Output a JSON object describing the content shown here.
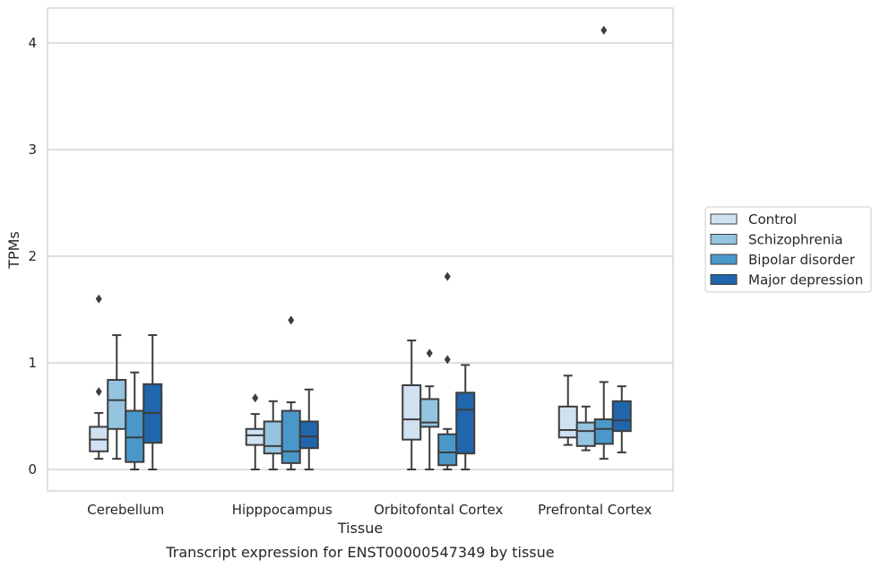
{
  "caption": "Transcript expression for ENST00000547349 by tissue",
  "chart_data": {
    "type": "box",
    "title": "",
    "xlabel": "Tissue",
    "ylabel": "TPMs",
    "ylim": [
      -0.2,
      4.33
    ],
    "yticks": [
      0,
      1,
      2,
      3,
      4
    ],
    "grid": "horizontal",
    "legend_position": "right",
    "categories": [
      "Cerebellum",
      "Hipppocampus",
      "Orbitofontal Cortex",
      "Prefrontal Cortex"
    ],
    "series": [
      {
        "name": "Control",
        "color": "#d0e1f2",
        "boxes": [
          {
            "whislo": 0.1,
            "q1": 0.17,
            "med": 0.28,
            "q3": 0.4,
            "whishi": 0.53,
            "fliers": [
              0.73,
              1.6
            ]
          },
          {
            "whislo": 0.0,
            "q1": 0.23,
            "med": 0.32,
            "q3": 0.38,
            "whishi": 0.52,
            "fliers": [
              0.67
            ]
          },
          {
            "whislo": 0.0,
            "q1": 0.28,
            "med": 0.47,
            "q3": 0.79,
            "whishi": 1.21,
            "fliers": []
          },
          {
            "whislo": 0.23,
            "q1": 0.3,
            "med": 0.37,
            "q3": 0.59,
            "whishi": 0.88,
            "fliers": []
          }
        ]
      },
      {
        "name": "Schizophrenia",
        "color": "#94c4df",
        "boxes": [
          {
            "whislo": 0.1,
            "q1": 0.38,
            "med": 0.65,
            "q3": 0.84,
            "whishi": 1.26,
            "fliers": []
          },
          {
            "whislo": 0.0,
            "q1": 0.15,
            "med": 0.22,
            "q3": 0.45,
            "whishi": 0.64,
            "fliers": []
          },
          {
            "whislo": 0.0,
            "q1": 0.4,
            "med": 0.44,
            "q3": 0.66,
            "whishi": 0.78,
            "fliers": [
              1.09
            ]
          },
          {
            "whislo": 0.18,
            "q1": 0.22,
            "med": 0.36,
            "q3": 0.44,
            "whishi": 0.59,
            "fliers": []
          }
        ]
      },
      {
        "name": "Bipolar disorder",
        "color": "#4a98c9",
        "boxes": [
          {
            "whislo": 0.0,
            "q1": 0.07,
            "med": 0.3,
            "q3": 0.55,
            "whishi": 0.91,
            "fliers": []
          },
          {
            "whislo": 0.0,
            "q1": 0.06,
            "med": 0.17,
            "q3": 0.55,
            "whishi": 0.63,
            "fliers": [
              1.4
            ]
          },
          {
            "whislo": 0.0,
            "q1": 0.04,
            "med": 0.16,
            "q3": 0.33,
            "whishi": 0.38,
            "fliers": [
              1.03,
              1.81
            ]
          },
          {
            "whislo": 0.1,
            "q1": 0.24,
            "med": 0.38,
            "q3": 0.47,
            "whishi": 0.82,
            "fliers": [
              4.12
            ]
          }
        ]
      },
      {
        "name": "Major depression",
        "color": "#2166ac",
        "boxes": [
          {
            "whislo": 0.0,
            "q1": 0.25,
            "med": 0.53,
            "q3": 0.8,
            "whishi": 1.26,
            "fliers": []
          },
          {
            "whislo": 0.0,
            "q1": 0.2,
            "med": 0.31,
            "q3": 0.45,
            "whishi": 0.75,
            "fliers": []
          },
          {
            "whislo": 0.0,
            "q1": 0.15,
            "med": 0.56,
            "q3": 0.72,
            "whishi": 0.98,
            "fliers": []
          },
          {
            "whislo": 0.16,
            "q1": 0.36,
            "med": 0.46,
            "q3": 0.64,
            "whishi": 0.78,
            "fliers": []
          }
        ]
      }
    ]
  }
}
